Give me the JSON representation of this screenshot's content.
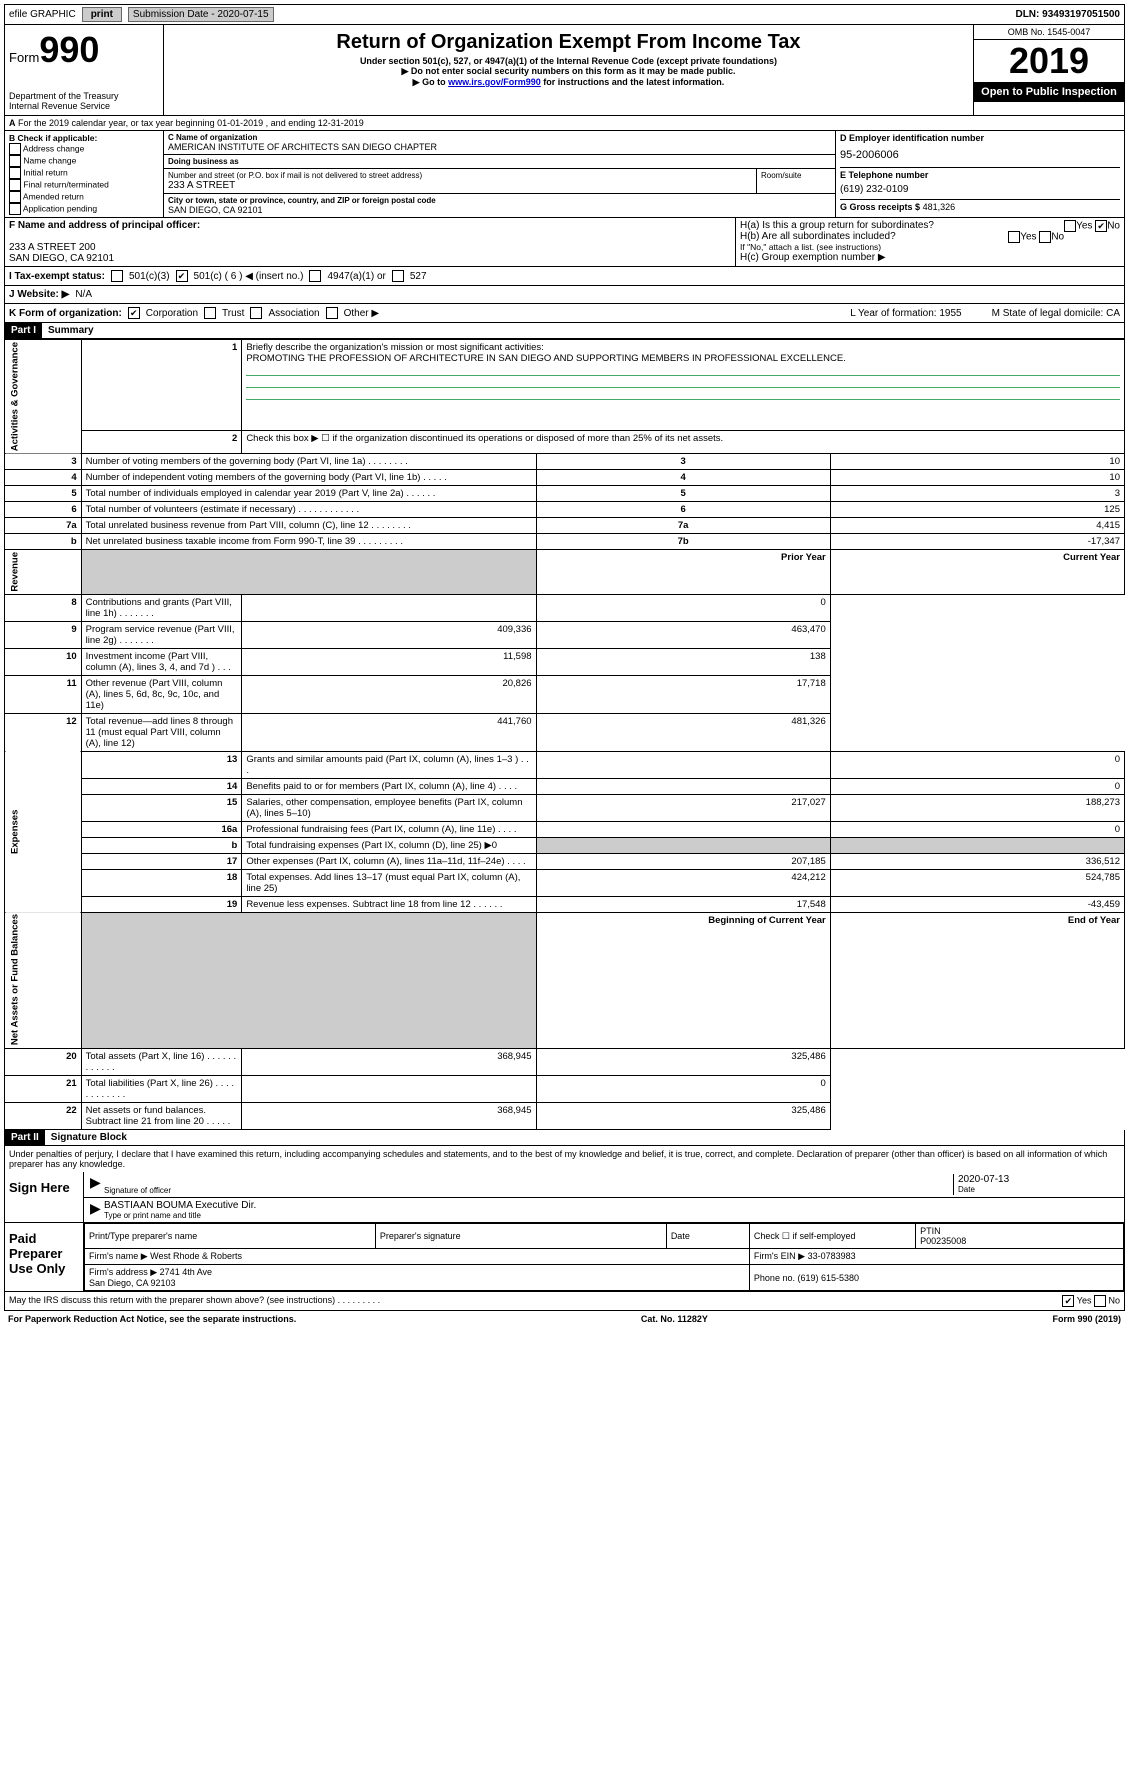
{
  "topbar": {
    "efile": "efile GRAPHIC",
    "print": "print",
    "sub_date_label": "Submission Date - 2020-07-15",
    "dln": "DLN: 93493197051500"
  },
  "header": {
    "form_label": "Form",
    "form_num": "990",
    "dept": "Department of the Treasury\nInternal Revenue Service",
    "title": "Return of Organization Exempt From Income Tax",
    "subtitle": "Under section 501(c), 527, or 4947(a)(1) of the Internal Revenue Code (except private foundations)",
    "note1": "Do not enter social security numbers on this form as it may be made public.",
    "note2": "Go to www.irs.gov/Form990 for instructions and the latest information.",
    "omb": "OMB No. 1545-0047",
    "year": "2019",
    "open": "Open to Public Inspection"
  },
  "sectionA": "For the 2019 calendar year, or tax year beginning 01-01-2019    , and ending 12-31-2019",
  "colB": {
    "label": "B Check if applicable:",
    "opts": [
      "Address change",
      "Name change",
      "Initial return",
      "Final return/terminated",
      "Amended return",
      "Application pending"
    ]
  },
  "colC": {
    "name_lbl": "C Name of organization",
    "name": "AMERICAN INSTITUTE OF ARCHITECTS SAN DIEGO CHAPTER",
    "dba_lbl": "Doing business as",
    "dba": "",
    "street_lbl": "Number and street (or P.O. box if mail is not delivered to street address)",
    "street": "233 A STREET",
    "suite_lbl": "Room/suite",
    "city_lbl": "City or town, state or province, country, and ZIP or foreign postal code",
    "city": "SAN DIEGO, CA  92101"
  },
  "colD": {
    "ein_lbl": "D Employer identification number",
    "ein": "95-2006006",
    "tel_lbl": "E Telephone number",
    "tel": "(619) 232-0109",
    "gross_lbl": "G Gross receipts $",
    "gross": "481,326"
  },
  "colF": {
    "lbl": "F Name and address of principal officer:",
    "addr1": "233 A STREET 200",
    "addr2": "SAN DIEGO, CA  92101"
  },
  "colH": {
    "a": "H(a)  Is this a group return for subordinates?",
    "b": "H(b)  Are all subordinates included?",
    "b_note": "If \"No,\" attach a list. (see instructions)",
    "c": "H(c)  Group exemption number ▶"
  },
  "rowI": {
    "lbl": "I   Tax-exempt status:",
    "o1": "501(c)(3)",
    "o2": "501(c) ( 6 ) ◀ (insert no.)",
    "o3": "4947(a)(1) or",
    "o4": "527"
  },
  "rowJ": {
    "lbl": "J   Website: ▶",
    "val": "N/A"
  },
  "rowK": {
    "lbl": "K Form of organization:",
    "o1": "Corporation",
    "o2": "Trust",
    "o3": "Association",
    "o4": "Other ▶",
    "l": "L Year of formation: 1955",
    "m": "M State of legal domicile: CA"
  },
  "part1": {
    "label": "Part I",
    "title": "Summary",
    "q1": "Briefly describe the organization's mission or most significant activities:",
    "a1": "PROMOTING THE PROFESSION OF ARCHITECTURE IN SAN DIEGO AND SUPPORTING MEMBERS IN PROFESSIONAL EXCELLENCE.",
    "q2": "Check this box ▶ ☐  if the organization discontinued its operations or disposed of more than 25% of its net assets.",
    "sideA": "Activities & Governance",
    "sideR": "Revenue",
    "sideE": "Expenses",
    "sideN": "Net Assets or Fund Balances",
    "rows_ag": [
      {
        "n": "3",
        "d": "Number of voting members of the governing body (Part VI, line 1a)   .    .    .    .    .    .    .    .",
        "b": "3",
        "v": "10"
      },
      {
        "n": "4",
        "d": "Number of independent voting members of the governing body (Part VI, line 1b)   .    .    .    .    .",
        "b": "4",
        "v": "10"
      },
      {
        "n": "5",
        "d": "Total number of individuals employed in calendar year 2019 (Part V, line 2a)   .    .    .    .    .    .",
        "b": "5",
        "v": "3"
      },
      {
        "n": "6",
        "d": "Total number of volunteers (estimate if necessary)   .    .    .    .    .    .    .    .    .    .    .    .",
        "b": "6",
        "v": "125"
      },
      {
        "n": "7a",
        "d": "Total unrelated business revenue from Part VIII, column (C), line 12   .    .    .    .    .    .    .    .",
        "b": "7a",
        "v": "4,415"
      },
      {
        "n": "b",
        "d": "Net unrelated business taxable income from Form 990-T, line 39   .    .    .    .    .    .    .    .    .",
        "b": "7b",
        "v": "-17,347"
      }
    ],
    "hdr_prior": "Prior Year",
    "hdr_curr": "Current Year",
    "rows_rev": [
      {
        "n": "8",
        "d": "Contributions and grants (Part VIII, line 1h)   .    .    .    .    .    .    .",
        "p": "",
        "c": "0"
      },
      {
        "n": "9",
        "d": "Program service revenue (Part VIII, line 2g)   .    .    .    .    .    .    .",
        "p": "409,336",
        "c": "463,470"
      },
      {
        "n": "10",
        "d": "Investment income (Part VIII, column (A), lines 3, 4, and 7d )   .    .    .",
        "p": "11,598",
        "c": "138"
      },
      {
        "n": "11",
        "d": "Other revenue (Part VIII, column (A), lines 5, 6d, 8c, 9c, 10c, and 11e)",
        "p": "20,826",
        "c": "17,718"
      },
      {
        "n": "12",
        "d": "Total revenue—add lines 8 through 11 (must equal Part VIII, column (A), line 12)",
        "p": "441,760",
        "c": "481,326"
      }
    ],
    "rows_exp": [
      {
        "n": "13",
        "d": "Grants and similar amounts paid (Part IX, column (A), lines 1–3 )   .    .    .",
        "p": "",
        "c": "0"
      },
      {
        "n": "14",
        "d": "Benefits paid to or for members (Part IX, column (A), line 4)   .    .    .    .",
        "p": "",
        "c": "0"
      },
      {
        "n": "15",
        "d": "Salaries, other compensation, employee benefits (Part IX, column (A), lines 5–10)",
        "p": "217,027",
        "c": "188,273"
      },
      {
        "n": "16a",
        "d": "Professional fundraising fees (Part IX, column (A), line 11e)   .    .    .    .",
        "p": "",
        "c": "0"
      },
      {
        "n": "b",
        "d": "Total fundraising expenses (Part IX, column (D), line 25) ▶0",
        "p": "shaded",
        "c": "shaded"
      },
      {
        "n": "17",
        "d": "Other expenses (Part IX, column (A), lines 11a–11d, 11f–24e)   .    .    .    .",
        "p": "207,185",
        "c": "336,512"
      },
      {
        "n": "18",
        "d": "Total expenses. Add lines 13–17 (must equal Part IX, column (A), line 25)",
        "p": "424,212",
        "c": "524,785"
      },
      {
        "n": "19",
        "d": "Revenue less expenses. Subtract line 18 from line 12   .    .    .    .    .    .",
        "p": "17,548",
        "c": "-43,459"
      }
    ],
    "hdr_beg": "Beginning of Current Year",
    "hdr_end": "End of Year",
    "rows_net": [
      {
        "n": "20",
        "d": "Total assets (Part X, line 16)   .    .    .    .    .    .    .    .    .    .    .    .",
        "p": "368,945",
        "c": "325,486"
      },
      {
        "n": "21",
        "d": "Total liabilities (Part X, line 26)   .    .    .    .    .    .    .    .    .    .    .    .",
        "p": "",
        "c": "0"
      },
      {
        "n": "22",
        "d": "Net assets or fund balances. Subtract line 21 from line 20  .    .    .    .    .",
        "p": "368,945",
        "c": "325,486"
      }
    ]
  },
  "part2": {
    "label": "Part II",
    "title": "Signature Block",
    "declaration": "Under penalties of perjury, I declare that I have examined this return, including accompanying schedules and statements, and to the best of my knowledge and belief, it is true, correct, and complete. Declaration of preparer (other than officer) is based on all information of which preparer has any knowledge.",
    "sign_here": "Sign Here",
    "sig_officer": "Signature of officer",
    "date": "2020-07-13",
    "date_lbl": "Date",
    "officer_name": "BASTIAAN BOUMA Executive Dir.",
    "type_lbl": "Type or print name and title",
    "paid": "Paid Preparer Use Only",
    "p_name_lbl": "Print/Type preparer's name",
    "p_sig_lbl": "Preparer's signature",
    "p_date_lbl": "Date",
    "p_check": "Check ☐ if self-employed",
    "ptin_lbl": "PTIN",
    "ptin": "P00235008",
    "firm_name_lbl": "Firm's name    ▶",
    "firm_name": "West Rhode & Roberts",
    "firm_ein_lbl": "Firm's EIN ▶",
    "firm_ein": "33-0783983",
    "firm_addr_lbl": "Firm's address ▶",
    "firm_addr": "2741 4th Ave\nSan Diego, CA  92103",
    "phone_lbl": "Phone no.",
    "phone": "(619) 615-5380",
    "discuss": "May the IRS discuss this return with the preparer shown above? (see instructions)   .    .    .    .    .    .    .    .    .",
    "paperwork": "For Paperwork Reduction Act Notice, see the separate instructions.",
    "cat": "Cat. No. 11282Y",
    "form_footer": "Form 990 (2019)"
  }
}
